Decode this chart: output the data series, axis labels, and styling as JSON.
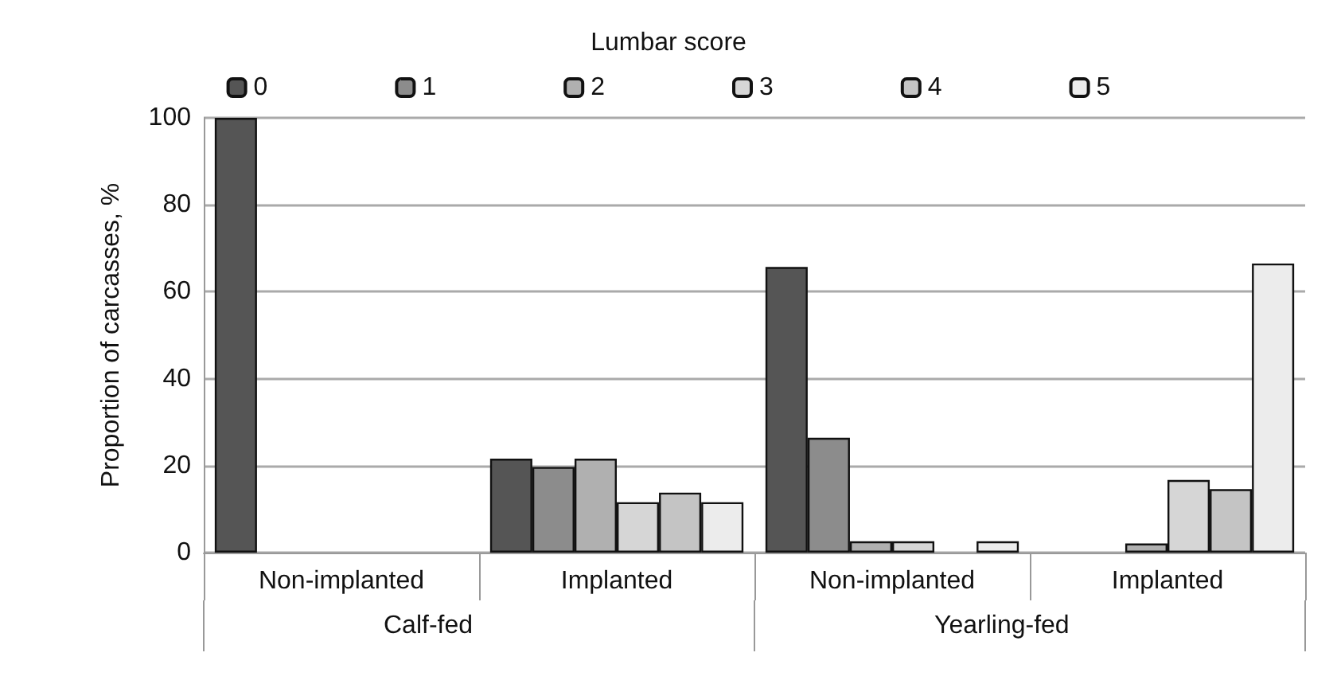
{
  "chart_data": {
    "type": "bar",
    "legend_title": "Lumbar score",
    "ylabel": "Proportion of carcasses, %",
    "categories": [
      "Non-implanted",
      "Implanted",
      "Non-implanted",
      "Implanted"
    ],
    "annotations": [
      "Calf-fed",
      "Yearling-fed"
    ],
    "series": [
      {
        "name": "0",
        "color": "#555555",
        "values": [
          100,
          21.6,
          65.7,
          null
        ]
      },
      {
        "name": "1",
        "color": "#8c8c8c",
        "values": [
          null,
          19.7,
          26.4,
          null
        ]
      },
      {
        "name": "2",
        "color": "#b0b0b0",
        "values": [
          null,
          21.6,
          2.6,
          2.1
        ]
      },
      {
        "name": "3",
        "color": "#d6d6d6",
        "values": [
          null,
          11.6,
          2.6,
          16.7
        ]
      },
      {
        "name": "4",
        "color": "#c4c4c4",
        "values": [
          null,
          13.8,
          null,
          14.6
        ]
      },
      {
        "name": "5",
        "color": "#ececec",
        "values": [
          null,
          11.6,
          2.6,
          66.5
        ]
      }
    ],
    "ylim": [
      0,
      100
    ],
    "yticks": [
      0,
      20,
      40,
      60,
      80,
      100
    ],
    "grid": "y",
    "legend": "top"
  }
}
